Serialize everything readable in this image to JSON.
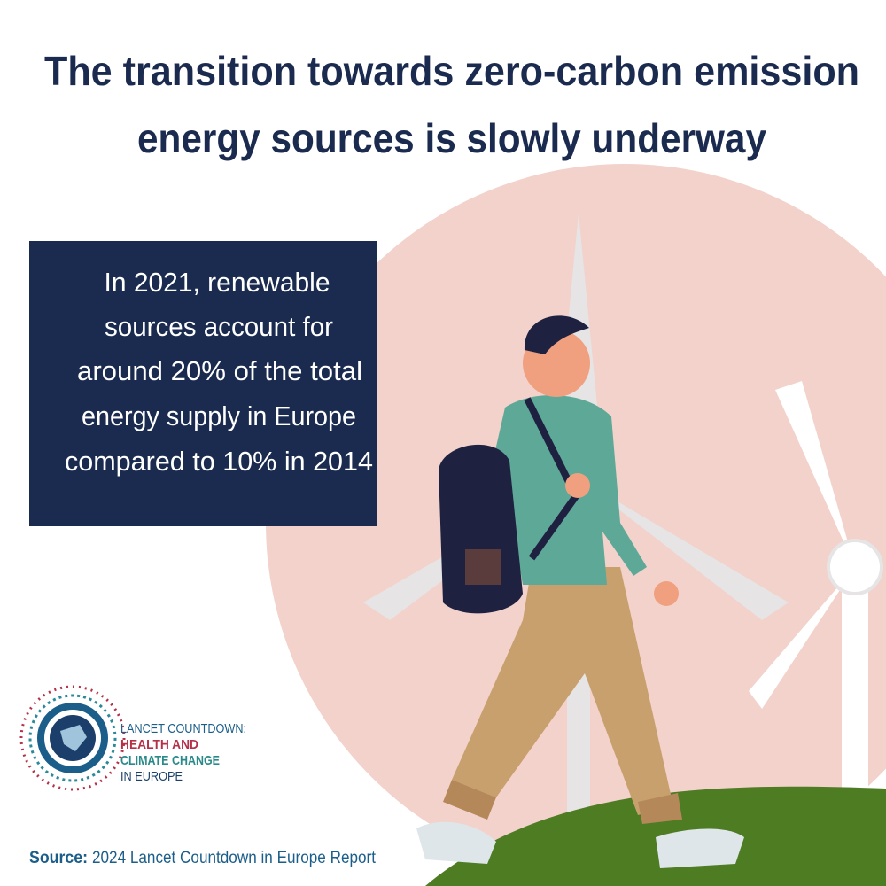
{
  "title": {
    "lines": [
      "The transition towards zero-carbon emission",
      "energy sources is slowly underway"
    ]
  },
  "callout": {
    "lines": [
      "In 2021, renewable",
      "sources account for",
      "around 20% of the total",
      "energy supply in Europe",
      "compared to 10% in 2014"
    ]
  },
  "logo": {
    "lines": [
      "LANCET COUNTDOWN:",
      "HEALTH AND",
      "CLIMATE CHANGE",
      "IN EUROPE"
    ]
  },
  "source": {
    "label": "Source:",
    "text": "2024 Lancet Countdown in Europe Report"
  }
}
